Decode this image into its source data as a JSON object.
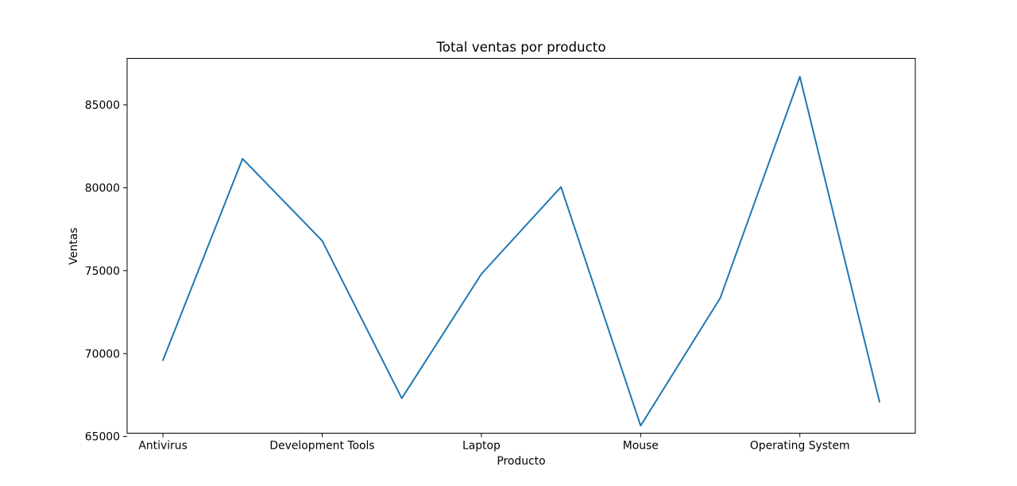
{
  "chart_data": {
    "type": "line",
    "title": "Total ventas por producto",
    "xlabel": "Producto",
    "ylabel": "Ventas",
    "x_tick_labels": [
      "Antivirus",
      "Development Tools",
      "Laptop",
      "Mouse",
      "Operating System"
    ],
    "x_tick_positions": [
      0,
      2,
      4,
      6,
      8
    ],
    "y_ticks": [
      65000,
      70000,
      75000,
      80000,
      85000
    ],
    "y_tick_labels": [
      "65000",
      "70000",
      "75000",
      "80000",
      "85000"
    ],
    "ylim": [
      65200,
      87800
    ],
    "xlim": [
      -0.45,
      9.45
    ],
    "grid": false,
    "line_color": "#1f77b4",
    "series": [
      {
        "x": [
          0,
          1,
          2,
          3,
          4,
          5,
          6,
          7,
          8,
          9
        ],
        "values": [
          69600,
          81750,
          76800,
          67300,
          74800,
          80050,
          65650,
          73350,
          86700,
          67100
        ]
      }
    ]
  }
}
